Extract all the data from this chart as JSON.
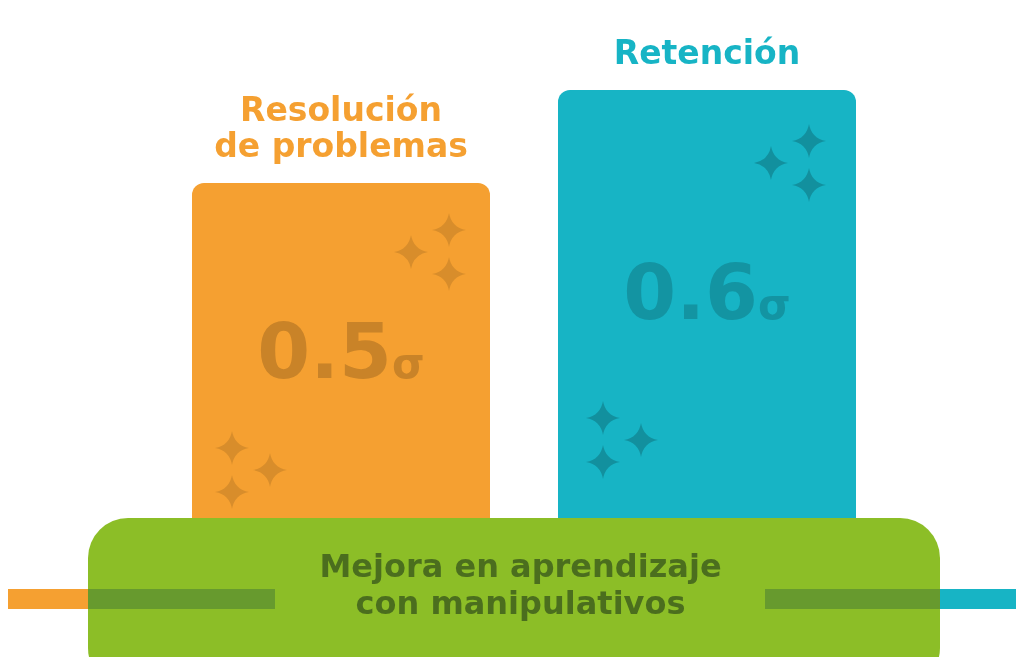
{
  "chart_data": {
    "type": "bar",
    "title": "Mejora en aprendizaje con manipulativos",
    "categories": [
      "Resolución de problemas",
      "Retención"
    ],
    "values": [
      0.5,
      0.6
    ],
    "colors": [
      "#f5a031",
      "#17b4c5"
    ],
    "value_labels": [
      "0.5σ",
      "0.6σ"
    ],
    "ylim": [
      0,
      0.6
    ],
    "tick_labels": false
  }
}
